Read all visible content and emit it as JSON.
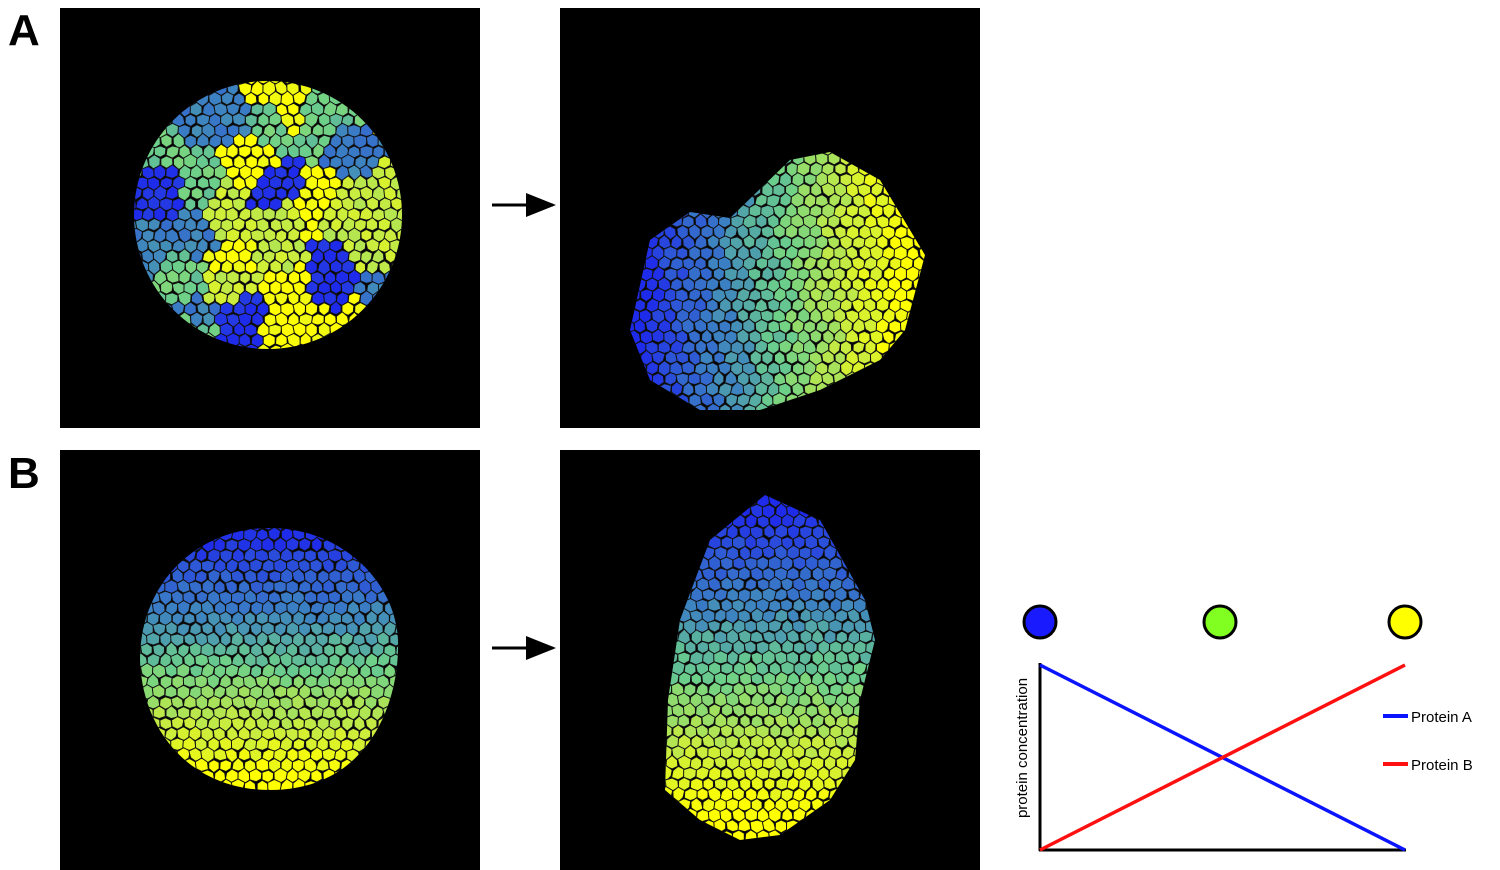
{
  "panels": {
    "a": {
      "label": "A"
    },
    "b": {
      "label": "B"
    }
  },
  "diagram": {
    "y_axis_label": "protein concentration",
    "legend": [
      "Protein A",
      "Protein B"
    ]
  }
}
